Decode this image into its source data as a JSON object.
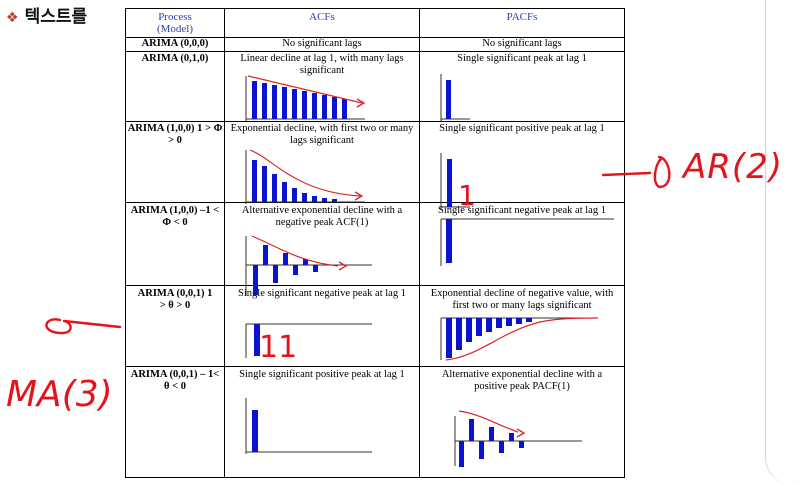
{
  "heading": {
    "bullet": "❖",
    "text": "텍스트를"
  },
  "table": {
    "columns": [
      "Process\n(Model)",
      "ACFs",
      "PACFs"
    ],
    "rows": [
      {
        "process": "ARIMA (0,0,0)",
        "acf": "No significant lags",
        "pacf": "No significant lags"
      },
      {
        "process": "ARIMA (0,1,0)",
        "acf": "Linear decline at lag 1, with many lags significant",
        "pacf": "Single significant peak at lag 1"
      },
      {
        "process": "ARIMA (1,0,0) 1 > Φ > 0",
        "acf": "Exponential decline, with first two or many lags significant",
        "pacf": "Single significant positive peak at lag 1"
      },
      {
        "process": "ARIMA (1,0,0) –1 < Φ < 0",
        "acf": "Alternative exponential decline with a negative peak ACF(1)",
        "pacf": "Single significant negative peak at lag 1"
      },
      {
        "process": "ARIMA (0,0,1) 1 > θ > 0",
        "acf": "Single significant negative peak at lag 1",
        "pacf": "Exponential decline of negative value, with first two or many lags significant"
      },
      {
        "process": "ARIMA (0,0,1) – 1< θ < 0",
        "acf": "Single significant positive peak at lag 1",
        "pacf": "Alternative exponential decline with a positive peak PACF(1)"
      }
    ]
  },
  "annotations": {
    "ar": "AR(2)",
    "ma": "MA(3)",
    "pacf_mark": "1",
    "acf_mark": "11"
  },
  "colors": {
    "bars": "#0a14d0",
    "trend": "#d8262c",
    "ink": "#e3151b",
    "header": "#2b3fb0"
  }
}
